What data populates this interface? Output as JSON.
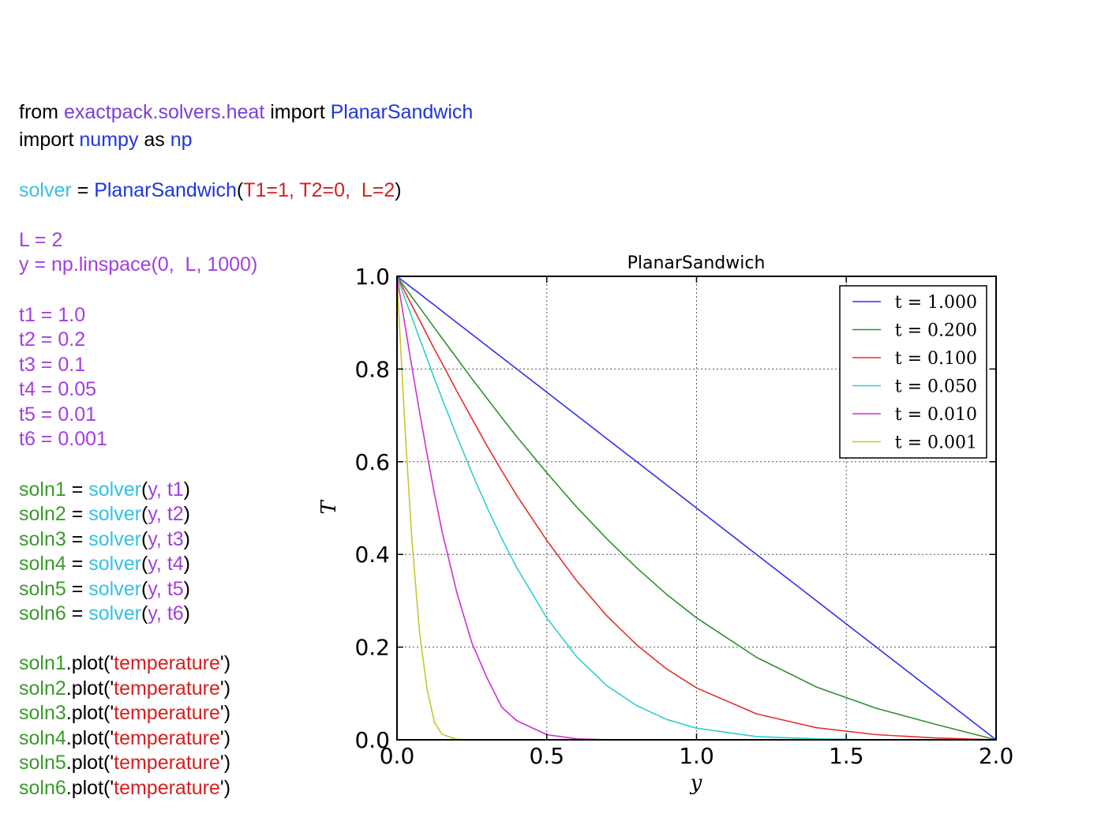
{
  "code": {
    "lines": [
      [
        {
          "t": "from ",
          "c": "#000000"
        },
        {
          "t": "exactpack.solvers.heat",
          "c": "#7b3fd8"
        },
        {
          "t": " import ",
          "c": "#000000"
        },
        {
          "t": "PlanarSandwich",
          "c": "#1f35e0"
        }
      ],
      [
        {
          "t": "import ",
          "c": "#000000"
        },
        {
          "t": "numpy",
          "c": "#1f35e0"
        },
        {
          "t": " as ",
          "c": "#000000"
        },
        {
          "t": "np",
          "c": "#1f35e0"
        }
      ],
      [
        {
          "t": "solver",
          "c": "#35c0e8"
        },
        {
          "t": " = ",
          "c": "#000000"
        },
        {
          "t": "PlanarSandwich",
          "c": "#1f35e0"
        },
        {
          "t": "(",
          "c": "#000000"
        },
        {
          "t": "T1=1, T2=0,  L=2",
          "c": "#d42020"
        },
        {
          "t": ")",
          "c": "#000000"
        }
      ],
      [
        {
          "t": "L = 2",
          "c": "#a33fe0"
        }
      ],
      [
        {
          "t": "y = np.linspace(0,  L, 1000)",
          "c": "#a33fe0"
        }
      ],
      [
        {
          "t": "t1 = 1.0",
          "c": "#a33fe0"
        }
      ],
      [
        {
          "t": "t2 = 0.2",
          "c": "#a33fe0"
        }
      ],
      [
        {
          "t": "t3 = 0.1",
          "c": "#a33fe0"
        }
      ],
      [
        {
          "t": "t4 = 0.05",
          "c": "#a33fe0"
        }
      ],
      [
        {
          "t": "t5 = 0.01",
          "c": "#a33fe0"
        }
      ],
      [
        {
          "t": "t6 = 0.001",
          "c": "#a33fe0"
        }
      ],
      [
        {
          "t": "soln1",
          "c": "#3a9a2a"
        },
        {
          "t": " = ",
          "c": "#000000"
        },
        {
          "t": "solver",
          "c": "#35c0e8"
        },
        {
          "t": "(",
          "c": "#000000"
        },
        {
          "t": "y, t1",
          "c": "#a33fe0"
        },
        {
          "t": ")",
          "c": "#000000"
        }
      ],
      [
        {
          "t": "soln2",
          "c": "#3a9a2a"
        },
        {
          "t": " = ",
          "c": "#000000"
        },
        {
          "t": "solver",
          "c": "#35c0e8"
        },
        {
          "t": "(",
          "c": "#000000"
        },
        {
          "t": "y, t2",
          "c": "#a33fe0"
        },
        {
          "t": ")",
          "c": "#000000"
        }
      ],
      [
        {
          "t": "soln3",
          "c": "#3a9a2a"
        },
        {
          "t": " = ",
          "c": "#000000"
        },
        {
          "t": "solver",
          "c": "#35c0e8"
        },
        {
          "t": "(",
          "c": "#000000"
        },
        {
          "t": "y, t3",
          "c": "#a33fe0"
        },
        {
          "t": ")",
          "c": "#000000"
        }
      ],
      [
        {
          "t": "soln4",
          "c": "#3a9a2a"
        },
        {
          "t": " = ",
          "c": "#000000"
        },
        {
          "t": "solver",
          "c": "#35c0e8"
        },
        {
          "t": "(",
          "c": "#000000"
        },
        {
          "t": "y, t4",
          "c": "#a33fe0"
        },
        {
          "t": ")",
          "c": "#000000"
        }
      ],
      [
        {
          "t": "soln5",
          "c": "#3a9a2a"
        },
        {
          "t": " = ",
          "c": "#000000"
        },
        {
          "t": "solver",
          "c": "#35c0e8"
        },
        {
          "t": "(",
          "c": "#000000"
        },
        {
          "t": "y, t5",
          "c": "#a33fe0"
        },
        {
          "t": ")",
          "c": "#000000"
        }
      ],
      [
        {
          "t": "soln6",
          "c": "#3a9a2a"
        },
        {
          "t": " = ",
          "c": "#000000"
        },
        {
          "t": "solver",
          "c": "#35c0e8"
        },
        {
          "t": "(",
          "c": "#000000"
        },
        {
          "t": "y, t6",
          "c": "#a33fe0"
        },
        {
          "t": ")",
          "c": "#000000"
        }
      ],
      [
        {
          "t": "soln1",
          "c": "#3a9a2a"
        },
        {
          "t": ".plot('",
          "c": "#000000"
        },
        {
          "t": "temperature",
          "c": "#d42020"
        },
        {
          "t": "')",
          "c": "#000000"
        }
      ],
      [
        {
          "t": "soln2",
          "c": "#3a9a2a"
        },
        {
          "t": ".plot('",
          "c": "#000000"
        },
        {
          "t": "temperature",
          "c": "#d42020"
        },
        {
          "t": "')",
          "c": "#000000"
        }
      ],
      [
        {
          "t": "soln3",
          "c": "#3a9a2a"
        },
        {
          "t": ".plot('",
          "c": "#000000"
        },
        {
          "t": "temperature",
          "c": "#d42020"
        },
        {
          "t": "')",
          "c": "#000000"
        }
      ],
      [
        {
          "t": "soln4",
          "c": "#3a9a2a"
        },
        {
          "t": ".plot('",
          "c": "#000000"
        },
        {
          "t": "temperature",
          "c": "#d42020"
        },
        {
          "t": "')",
          "c": "#000000"
        }
      ],
      [
        {
          "t": "soln5",
          "c": "#3a9a2a"
        },
        {
          "t": ".plot('",
          "c": "#000000"
        },
        {
          "t": "temperature",
          "c": "#d42020"
        },
        {
          "t": "')",
          "c": "#000000"
        }
      ],
      [
        {
          "t": "soln6",
          "c": "#3a9a2a"
        },
        {
          "t": ".plot('",
          "c": "#000000"
        },
        {
          "t": "temperature",
          "c": "#d42020"
        },
        {
          "t": "')",
          "c": "#000000"
        }
      ]
    ]
  },
  "chart_data": {
    "type": "line",
    "title": "PlanarSandwich",
    "xlabel": "y",
    "ylabel": "T",
    "xlim": [
      0,
      2
    ],
    "ylim": [
      0,
      1
    ],
    "xticks": [
      "0.0",
      "0.5",
      "1.0",
      "1.5",
      "2.0"
    ],
    "yticks": [
      "0.0",
      "0.2",
      "0.4",
      "0.6",
      "0.8",
      "1.0"
    ],
    "grid": true,
    "legend_position": "top-right",
    "x": [
      0,
      0.01,
      0.02,
      0.03,
      0.05,
      0.075,
      0.1,
      0.125,
      0.15,
      0.2,
      0.25,
      0.3,
      0.35,
      0.4,
      0.5,
      0.6,
      0.7,
      0.8,
      0.9,
      1.0,
      1.2,
      1.4,
      1.6,
      1.8,
      2.0
    ],
    "series": [
      {
        "name": "t = 1.000",
        "color": "#2f2fef",
        "values": [
          1.0,
          0.995,
          0.99,
          0.985,
          0.975,
          0.963,
          0.95,
          0.938,
          0.925,
          0.9,
          0.875,
          0.85,
          0.825,
          0.8,
          0.75,
          0.7,
          0.65,
          0.6,
          0.55,
          0.5,
          0.4,
          0.3,
          0.2,
          0.1,
          0.0
        ]
      },
      {
        "name": "t = 0.200",
        "color": "#2f8f2f",
        "values": [
          1.0,
          0.991,
          0.982,
          0.973,
          0.955,
          0.933,
          0.911,
          0.889,
          0.867,
          0.823,
          0.779,
          0.737,
          0.695,
          0.654,
          0.576,
          0.502,
          0.434,
          0.371,
          0.314,
          0.263,
          0.178,
          0.114,
          0.068,
          0.033,
          0.0
        ]
      },
      {
        "name": "t = 0.100",
        "color": "#e52f2f",
        "values": [
          1.0,
          0.987,
          0.975,
          0.962,
          0.937,
          0.906,
          0.874,
          0.843,
          0.813,
          0.752,
          0.693,
          0.635,
          0.58,
          0.527,
          0.43,
          0.343,
          0.268,
          0.205,
          0.153,
          0.112,
          0.056,
          0.026,
          0.011,
          0.004,
          0.0
        ]
      },
      {
        "name": "t = 0.050",
        "color": "#2fcfcf",
        "values": [
          1.0,
          0.982,
          0.964,
          0.946,
          0.911,
          0.866,
          0.823,
          0.779,
          0.737,
          0.655,
          0.576,
          0.502,
          0.434,
          0.371,
          0.263,
          0.179,
          0.117,
          0.074,
          0.044,
          0.025,
          0.007,
          0.002,
          0.0,
          0.0,
          0.0
        ]
      },
      {
        "name": "t = 0.010",
        "color": "#cf2fcf",
        "values": [
          1.0,
          0.96,
          0.921,
          0.881,
          0.803,
          0.708,
          0.617,
          0.531,
          0.451,
          0.317,
          0.209,
          0.134,
          0.07,
          0.041,
          0.011,
          0.002,
          0.0,
          0.0,
          0.0,
          0.0,
          0.0,
          0.0,
          0.0,
          0.0,
          0.0
        ]
      },
      {
        "name": "t = 0.001",
        "color": "#c7c72f",
        "values": [
          1.0,
          0.873,
          0.752,
          0.637,
          0.428,
          0.233,
          0.11,
          0.038,
          0.012,
          0.001,
          0.0,
          0.0,
          0.0,
          0.0,
          0.0,
          0.0,
          0.0,
          0.0,
          0.0,
          0.0,
          0.0,
          0.0,
          0.0,
          0.0,
          0.0
        ]
      }
    ]
  }
}
